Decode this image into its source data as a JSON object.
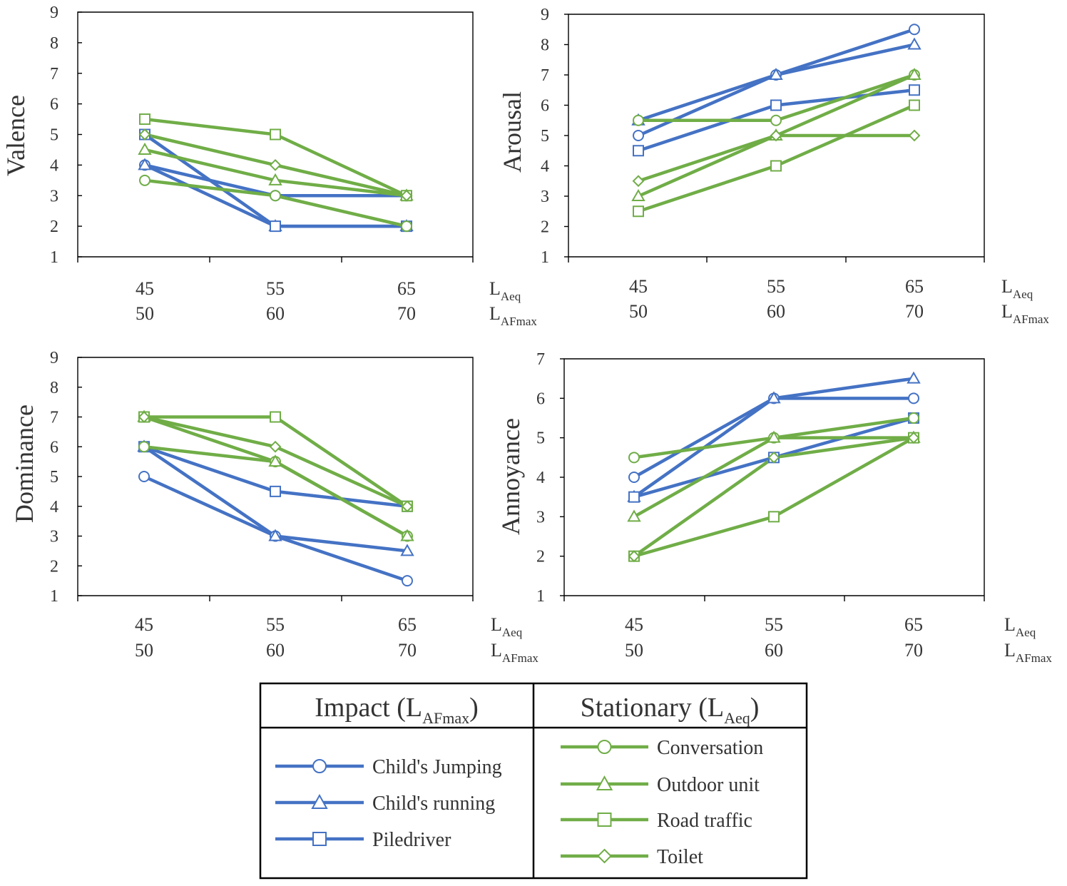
{
  "legend": {
    "impact": {
      "title": "Impact (L",
      "title_sub": "AFmax",
      "title_end": ")"
    },
    "stationary": {
      "title": "Stationary (L",
      "title_sub": "Aeq",
      "title_end": ")"
    }
  },
  "series_styles": [
    {
      "name": "Child's Jumping",
      "group": "impact",
      "marker": "circle",
      "color": "#4472C4"
    },
    {
      "name": "Child's running",
      "group": "impact",
      "marker": "triangle",
      "color": "#4472C4"
    },
    {
      "name": "Piledriver",
      "group": "impact",
      "marker": "square",
      "color": "#4472C4"
    },
    {
      "name": "Conversation",
      "group": "stationary",
      "marker": "circle",
      "color": "#70AD47"
    },
    {
      "name": "Outdoor unit",
      "group": "stationary",
      "marker": "triangle",
      "color": "#70AD47"
    },
    {
      "name": "Road traffic",
      "group": "stationary",
      "marker": "square",
      "color": "#70AD47"
    },
    {
      "name": "Toilet",
      "group": "stationary",
      "marker": "diamond",
      "color": "#70AD47"
    }
  ],
  "x_axis": {
    "row1": [
      "45",
      "55",
      "65"
    ],
    "row2": [
      "50",
      "60",
      "70"
    ],
    "row1_label": {
      "main": "L",
      "sub": "Aeq"
    },
    "row2_label": {
      "main": "L",
      "sub": "AFmax"
    }
  },
  "chart_data": [
    {
      "type": "line",
      "ylabel": "Valence",
      "ylim": [
        1,
        9
      ],
      "yticks": [
        "1",
        "2",
        "3",
        "4",
        "5",
        "6",
        "7",
        "8",
        "9"
      ],
      "categories": [
        "45/50",
        "55/60",
        "65/70"
      ],
      "series": [
        {
          "name": "Child's Jumping",
          "values": [
            4,
            3,
            3
          ]
        },
        {
          "name": "Child's running",
          "values": [
            4,
            2,
            2
          ]
        },
        {
          "name": "Piledriver",
          "values": [
            5,
            2,
            2
          ]
        },
        {
          "name": "Conversation",
          "values": [
            3.5,
            3,
            2
          ]
        },
        {
          "name": "Outdoor unit",
          "values": [
            4.5,
            3.5,
            3
          ]
        },
        {
          "name": "Road traffic",
          "values": [
            5.5,
            5,
            3
          ]
        },
        {
          "name": "Toilet",
          "values": [
            5,
            4,
            3
          ]
        }
      ]
    },
    {
      "type": "line",
      "ylabel": "Arousal",
      "ylim": [
        1,
        9
      ],
      "yticks": [
        "1",
        "2",
        "3",
        "4",
        "5",
        "6",
        "7",
        "8",
        "9"
      ],
      "categories": [
        "45/50",
        "55/60",
        "65/70"
      ],
      "series": [
        {
          "name": "Child's Jumping",
          "values": [
            5,
            7,
            8.5
          ]
        },
        {
          "name": "Child's running",
          "values": [
            5.5,
            7,
            8
          ]
        },
        {
          "name": "Piledriver",
          "values": [
            4.5,
            6,
            6.5
          ]
        },
        {
          "name": "Conversation",
          "values": [
            5.5,
            5.5,
            7
          ]
        },
        {
          "name": "Outdoor unit",
          "values": [
            3,
            5,
            7
          ]
        },
        {
          "name": "Road traffic",
          "values": [
            2.5,
            4,
            6
          ]
        },
        {
          "name": "Toilet",
          "values": [
            3.5,
            5,
            5
          ]
        }
      ]
    },
    {
      "type": "line",
      "ylabel": "Dominance",
      "ylim": [
        1,
        9
      ],
      "yticks": [
        "1",
        "2",
        "3",
        "4",
        "5",
        "6",
        "7",
        "8",
        "9"
      ],
      "categories": [
        "45/50",
        "55/60",
        "65/70"
      ],
      "series": [
        {
          "name": "Child's Jumping",
          "values": [
            5,
            3,
            1.5
          ]
        },
        {
          "name": "Child's running",
          "values": [
            6,
            3,
            2.5
          ]
        },
        {
          "name": "Piledriver",
          "values": [
            6,
            4.5,
            4
          ]
        },
        {
          "name": "Conversation",
          "values": [
            6,
            5.5,
            3
          ]
        },
        {
          "name": "Outdoor unit",
          "values": [
            7,
            5.5,
            3
          ]
        },
        {
          "name": "Road traffic",
          "values": [
            7,
            7,
            4
          ]
        },
        {
          "name": "Toilet",
          "values": [
            7,
            6,
            4
          ]
        }
      ]
    },
    {
      "type": "line",
      "ylabel": "Annoyance",
      "ylim": [
        1,
        7
      ],
      "yticks": [
        "1",
        "2",
        "3",
        "4",
        "5",
        "6",
        "7"
      ],
      "categories": [
        "45/50",
        "55/60",
        "65/70"
      ],
      "series": [
        {
          "name": "Child's Jumping",
          "values": [
            4,
            6,
            6
          ]
        },
        {
          "name": "Child's running",
          "values": [
            3.5,
            6,
            6.5
          ]
        },
        {
          "name": "Piledriver",
          "values": [
            3.5,
            4.5,
            5.5
          ]
        },
        {
          "name": "Conversation",
          "values": [
            4.5,
            5,
            5.5
          ]
        },
        {
          "name": "Outdoor unit",
          "values": [
            3,
            5,
            5
          ]
        },
        {
          "name": "Road traffic",
          "values": [
            2,
            3,
            5
          ]
        },
        {
          "name": "Toilet",
          "values": [
            2,
            4.5,
            5
          ]
        }
      ]
    }
  ]
}
